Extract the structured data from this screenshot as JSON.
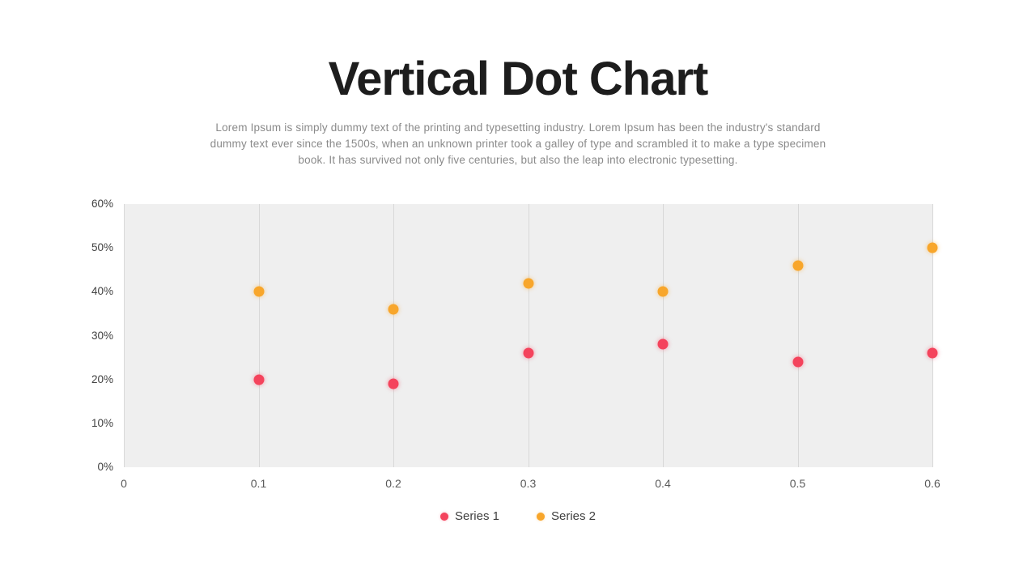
{
  "slide": {
    "title": "Vertical Dot Chart",
    "description_lines": [
      "Lorem Ipsum is simply dummy text of the printing and typesetting industry. Lorem Ipsum has been the industry's standard",
      "dummy text ever since the 1500s, when an unknown printer took a galley of type and scrambled it to make a type specimen",
      "book. It has survived not only five centuries, but also the leap into electronic typesetting."
    ]
  },
  "chart_data": {
    "type": "scatter",
    "title": "Vertical Dot Chart",
    "x": [
      0.1,
      0.2,
      0.3,
      0.4,
      0.5,
      0.6
    ],
    "x_tick_labels": [
      "0",
      "0.1",
      "0.2",
      "0.3",
      "0.4",
      "0.5",
      "0.6"
    ],
    "y_ticks": [
      0,
      10,
      20,
      30,
      40,
      50,
      60
    ],
    "y_tick_suffix": "%",
    "xlim": [
      0,
      0.6
    ],
    "ylim": [
      0,
      60
    ],
    "grid": "vertical-only",
    "plot_background": "#efefef",
    "gridline_color": "#d8d8d8",
    "legend_position": "bottom",
    "series": [
      {
        "name": "Series 1",
        "color": "#f4435c",
        "values": [
          20,
          19,
          26,
          28,
          24,
          26
        ]
      },
      {
        "name": "Series 2",
        "color": "#f8a62b",
        "values": [
          40,
          36,
          42,
          40,
          46,
          50
        ]
      }
    ]
  }
}
